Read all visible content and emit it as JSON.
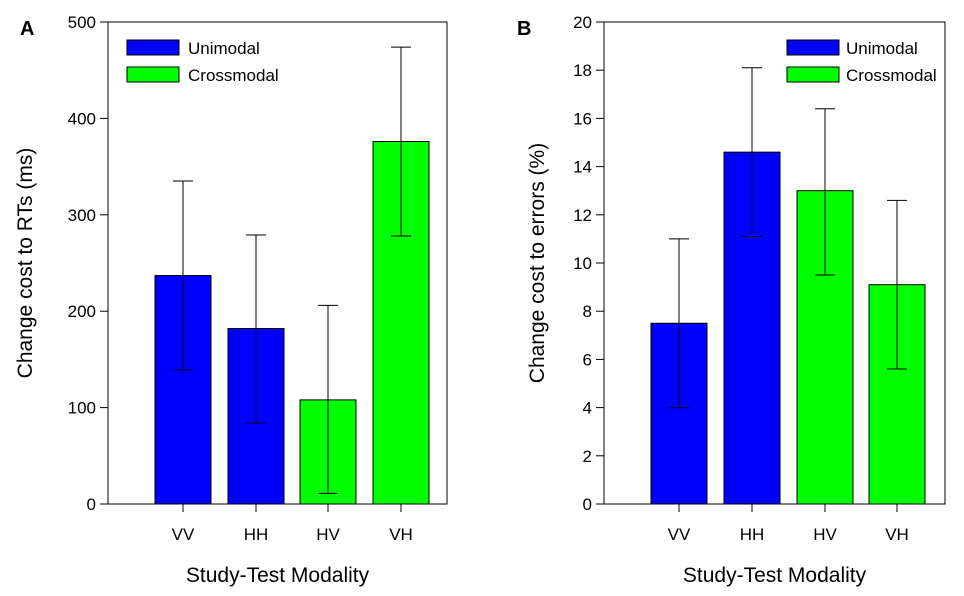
{
  "chart_data": [
    {
      "panel": "A",
      "type": "bar",
      "categories": [
        "VV",
        "HH",
        "HV",
        "VH"
      ],
      "values": [
        237,
        182,
        108,
        376
      ],
      "error_high": [
        335,
        279,
        206,
        474
      ],
      "error_low": [
        139,
        84,
        11,
        278
      ],
      "bar_groups": [
        "Unimodal",
        "Unimodal",
        "Crossmodal",
        "Crossmodal"
      ],
      "xlabel": "Study-Test Modality",
      "ylabel": "Change cost to RTs (ms)",
      "ylim": [
        0,
        500
      ],
      "yticks": [
        0,
        100,
        200,
        300,
        400,
        500
      ],
      "legend": [
        {
          "name": "Unimodal",
          "color": "#0000ff"
        },
        {
          "name": "Crossmodal",
          "color": "#00ff00"
        }
      ],
      "legend_position": "top-left",
      "grid": false
    },
    {
      "panel": "B",
      "type": "bar",
      "categories": [
        "VV",
        "HH",
        "HV",
        "VH"
      ],
      "values": [
        7.5,
        14.6,
        13.0,
        9.1
      ],
      "error_high": [
        11.0,
        18.1,
        16.4,
        12.6
      ],
      "error_low": [
        4.0,
        11.1,
        9.5,
        5.6
      ],
      "bar_groups": [
        "Unimodal",
        "Unimodal",
        "Crossmodal",
        "Crossmodal"
      ],
      "xlabel": "Study-Test Modality",
      "ylabel": "Change cost to errors (%)",
      "ylim": [
        0,
        20
      ],
      "yticks": [
        0,
        2,
        4,
        6,
        8,
        10,
        12,
        14,
        16,
        18,
        20
      ],
      "legend": [
        {
          "name": "Unimodal",
          "color": "#0000ff"
        },
        {
          "name": "Crossmodal",
          "color": "#00ff00"
        }
      ],
      "legend_position": "top-right",
      "grid": false
    }
  ]
}
